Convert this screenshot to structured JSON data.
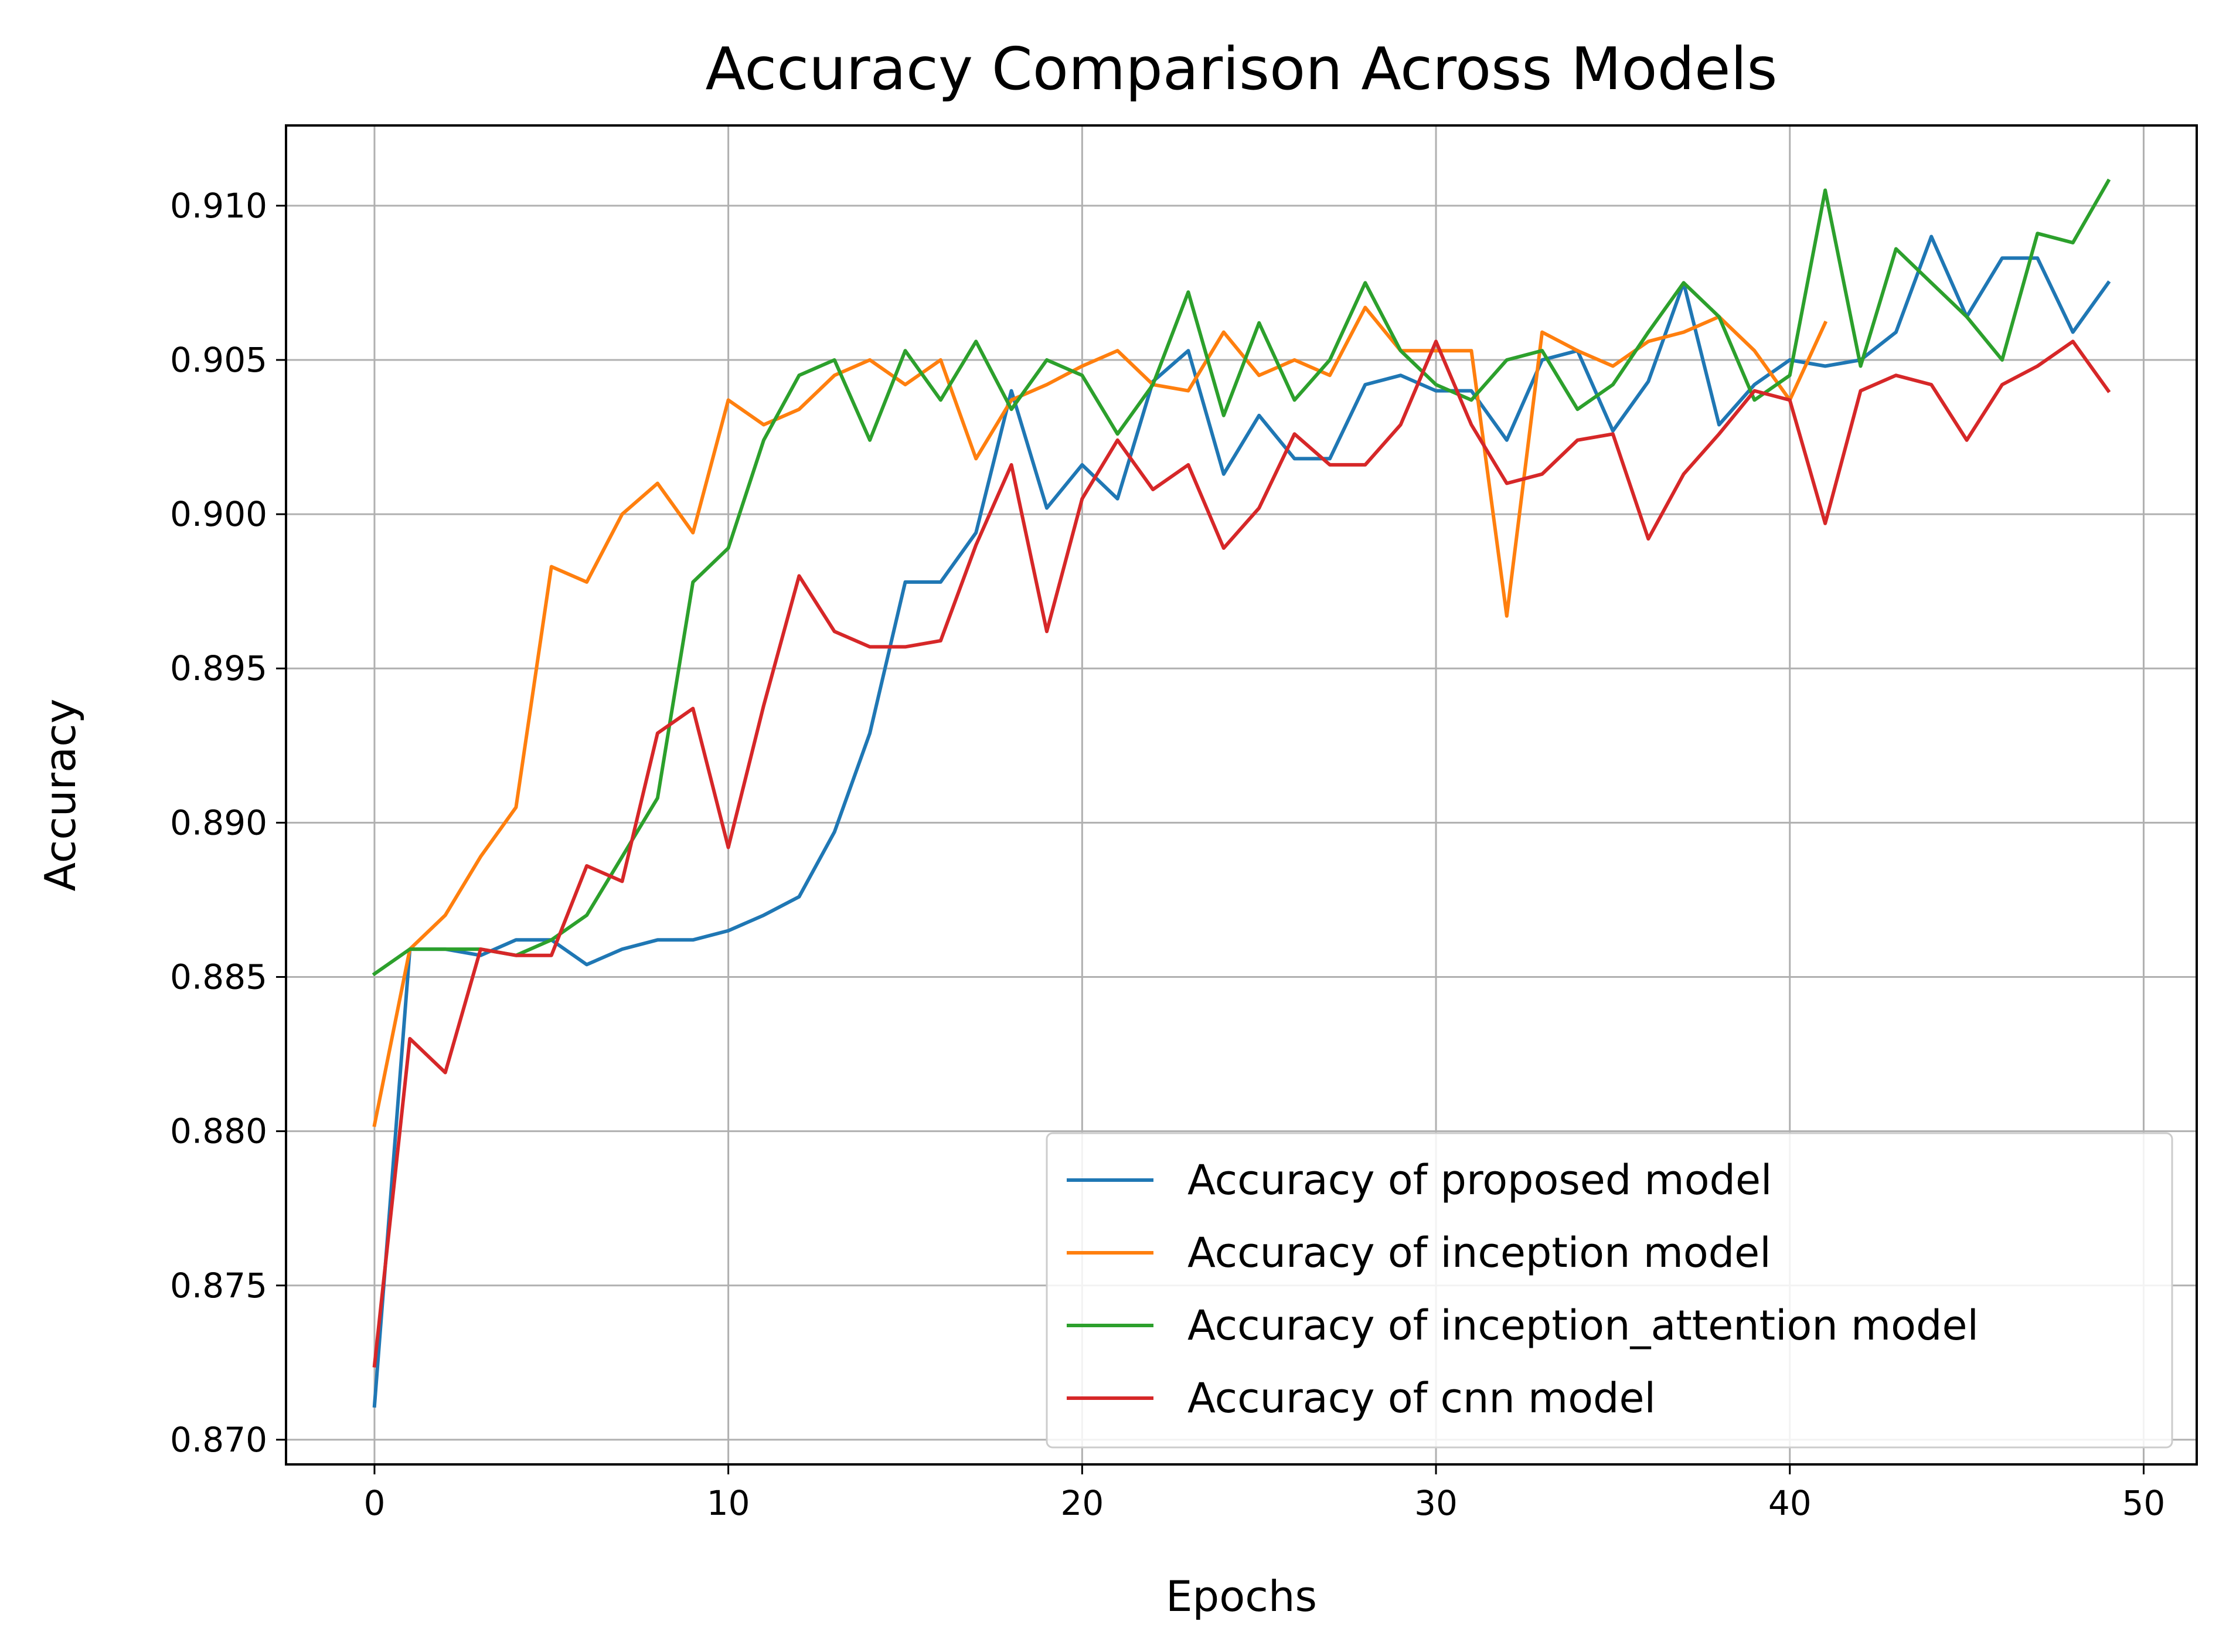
{
  "chart_data": {
    "type": "line",
    "title": "Accuracy Comparison Across Models",
    "xlabel": "Epochs",
    "ylabel": "Accuracy",
    "xlim": [
      -2.5,
      51.5
    ],
    "ylim": [
      0.8692,
      0.9126
    ],
    "xticks": [
      0,
      10,
      20,
      30,
      40,
      50
    ],
    "xtick_labels": [
      "0",
      "10",
      "20",
      "30",
      "40",
      "50"
    ],
    "yticks": [
      0.87,
      0.875,
      0.88,
      0.885,
      0.89,
      0.895,
      0.9,
      0.905,
      0.91
    ],
    "ytick_labels": [
      "0.870",
      "0.875",
      "0.880",
      "0.885",
      "0.890",
      "0.895",
      "0.900",
      "0.905",
      "0.910"
    ],
    "grid": true,
    "legend_position": "lower-right",
    "series": [
      {
        "name": "Accuracy of proposed model",
        "color": "#1f77b4",
        "x": [
          0,
          1,
          2,
          3,
          4,
          5,
          6,
          7,
          8,
          9,
          10,
          11,
          12,
          13,
          14,
          15,
          16,
          17,
          18,
          19,
          20,
          21,
          22,
          23,
          24,
          25,
          26,
          27,
          28,
          29,
          30,
          31,
          32,
          33,
          34,
          35,
          36,
          37,
          38,
          39,
          40,
          41,
          42,
          43,
          44,
          45,
          46,
          47,
          48,
          49
        ],
        "values": [
          0.8711,
          0.8859,
          0.8859,
          0.8857,
          0.8862,
          0.8862,
          0.8854,
          0.8859,
          0.8862,
          0.8862,
          0.8865,
          0.887,
          0.8876,
          0.8897,
          0.8929,
          0.8978,
          0.8978,
          0.8994,
          0.904,
          0.9002,
          0.9016,
          0.9005,
          0.9043,
          0.9053,
          0.9013,
          0.9032,
          0.9018,
          0.9018,
          0.9042,
          0.9045,
          0.904,
          0.904,
          0.9024,
          0.905,
          0.9053,
          0.9027,
          0.9043,
          0.9075,
          0.9029,
          0.9042,
          0.905,
          0.9048,
          0.905,
          0.9059,
          0.909,
          0.9064,
          0.9083,
          0.9083,
          0.9059,
          0.9075
        ]
      },
      {
        "name": "Accuracy of inception model",
        "color": "#ff7f0e",
        "x": [
          0,
          1,
          2,
          3,
          4,
          5,
          6,
          7,
          8,
          9,
          10,
          11,
          12,
          13,
          14,
          15,
          16,
          17,
          18,
          19,
          20,
          21,
          22,
          23,
          24,
          25,
          26,
          27,
          28,
          29,
          30,
          31,
          32,
          33,
          34,
          35,
          36,
          37,
          38,
          39,
          40,
          41
        ],
        "values": [
          0.8802,
          0.8859,
          0.887,
          0.8889,
          0.8905,
          0.8983,
          0.8978,
          0.9,
          0.901,
          0.8994,
          0.9037,
          0.9029,
          0.9034,
          0.9045,
          0.905,
          0.9042,
          0.905,
          0.9018,
          0.9037,
          0.9042,
          0.9048,
          0.9053,
          0.9042,
          0.904,
          0.9059,
          0.9045,
          0.905,
          0.9045,
          0.9067,
          0.9053,
          0.9053,
          0.9053,
          0.8967,
          0.9059,
          0.9053,
          0.9048,
          0.9056,
          0.9059,
          0.9064,
          0.9053,
          0.9037,
          0.9062
        ]
      },
      {
        "name": "Accuracy of inception_attention model",
        "color": "#2ca02c",
        "x": [
          0,
          1,
          2,
          3,
          4,
          5,
          6,
          7,
          8,
          9,
          10,
          11,
          12,
          13,
          14,
          15,
          16,
          17,
          18,
          19,
          20,
          21,
          22,
          23,
          24,
          25,
          26,
          27,
          28,
          29,
          30,
          31,
          32,
          33,
          34,
          35,
          36,
          37,
          38,
          39,
          40,
          41,
          42,
          43,
          44,
          45,
          46,
          47,
          48,
          49
        ],
        "values": [
          0.8851,
          0.8859,
          0.8859,
          0.8859,
          0.8857,
          0.8862,
          0.887,
          0.8889,
          0.8908,
          0.8978,
          0.8989,
          0.9024,
          0.9045,
          0.905,
          0.9024,
          0.9053,
          0.9037,
          0.9056,
          0.9034,
          0.905,
          0.9045,
          0.9026,
          0.9042,
          0.9072,
          0.9032,
          0.9062,
          0.9037,
          0.905,
          0.9075,
          0.9053,
          0.9042,
          0.9037,
          0.905,
          0.9053,
          0.9034,
          0.9042,
          0.9059,
          0.9075,
          0.9064,
          0.9037,
          0.9045,
          0.9105,
          0.9048,
          0.9086,
          0.9075,
          0.9064,
          0.905,
          0.9091,
          0.9088,
          0.9108
        ]
      },
      {
        "name": "Accuracy of cnn model",
        "color": "#d62728",
        "x": [
          0,
          1,
          2,
          3,
          4,
          5,
          6,
          7,
          8,
          9,
          10,
          11,
          12,
          13,
          14,
          15,
          16,
          17,
          18,
          19,
          20,
          21,
          22,
          23,
          24,
          25,
          26,
          27,
          28,
          29,
          30,
          31,
          32,
          33,
          34,
          35,
          36,
          37,
          38,
          39,
          40,
          41,
          42,
          43,
          44,
          45,
          46,
          47,
          48,
          49
        ],
        "values": [
          0.8724,
          0.883,
          0.8819,
          0.8859,
          0.8857,
          0.8857,
          0.8886,
          0.8881,
          0.8929,
          0.8937,
          0.8892,
          0.8938,
          0.898,
          0.8962,
          0.8957,
          0.8957,
          0.8959,
          0.899,
          0.9016,
          0.8962,
          0.9005,
          0.9024,
          0.9008,
          0.9016,
          0.8989,
          0.9002,
          0.9026,
          0.9016,
          0.9016,
          0.9029,
          0.9056,
          0.9029,
          0.901,
          0.9013,
          0.9024,
          0.9026,
          0.8992,
          0.9013,
          0.9026,
          0.904,
          0.9037,
          0.8997,
          0.904,
          0.9045,
          0.9042,
          0.9024,
          0.9042,
          0.9048,
          0.9056,
          0.904
        ]
      }
    ]
  }
}
